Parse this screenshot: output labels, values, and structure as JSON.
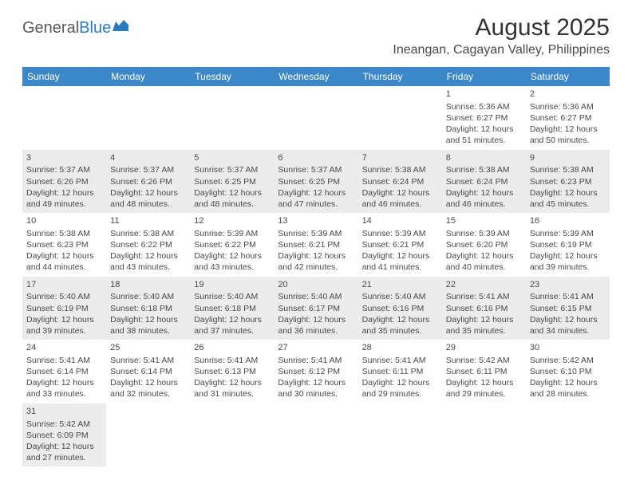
{
  "logo": {
    "text1": "General",
    "text2": "Blue",
    "icon_color": "#2d7bbf"
  },
  "title": "August 2025",
  "location": "Ineangan, Cagayan Valley, Philippines",
  "colors": {
    "header_bg": "#3b87c8",
    "header_text": "#ffffff",
    "shaded_bg": "#ececec",
    "border": "#3b87c8",
    "text": "#4a4a4a"
  },
  "weekdays": [
    "Sunday",
    "Monday",
    "Tuesday",
    "Wednesday",
    "Thursday",
    "Friday",
    "Saturday"
  ],
  "days": [
    {
      "n": 1,
      "sr": "5:36 AM",
      "ss": "6:27 PM",
      "dl": "12 hours and 51 minutes."
    },
    {
      "n": 2,
      "sr": "5:36 AM",
      "ss": "6:27 PM",
      "dl": "12 hours and 50 minutes."
    },
    {
      "n": 3,
      "sr": "5:37 AM",
      "ss": "6:26 PM",
      "dl": "12 hours and 49 minutes."
    },
    {
      "n": 4,
      "sr": "5:37 AM",
      "ss": "6:26 PM",
      "dl": "12 hours and 48 minutes."
    },
    {
      "n": 5,
      "sr": "5:37 AM",
      "ss": "6:25 PM",
      "dl": "12 hours and 48 minutes."
    },
    {
      "n": 6,
      "sr": "5:37 AM",
      "ss": "6:25 PM",
      "dl": "12 hours and 47 minutes."
    },
    {
      "n": 7,
      "sr": "5:38 AM",
      "ss": "6:24 PM",
      "dl": "12 hours and 46 minutes."
    },
    {
      "n": 8,
      "sr": "5:38 AM",
      "ss": "6:24 PM",
      "dl": "12 hours and 46 minutes."
    },
    {
      "n": 9,
      "sr": "5:38 AM",
      "ss": "6:23 PM",
      "dl": "12 hours and 45 minutes."
    },
    {
      "n": 10,
      "sr": "5:38 AM",
      "ss": "6:23 PM",
      "dl": "12 hours and 44 minutes."
    },
    {
      "n": 11,
      "sr": "5:38 AM",
      "ss": "6:22 PM",
      "dl": "12 hours and 43 minutes."
    },
    {
      "n": 12,
      "sr": "5:39 AM",
      "ss": "6:22 PM",
      "dl": "12 hours and 43 minutes."
    },
    {
      "n": 13,
      "sr": "5:39 AM",
      "ss": "6:21 PM",
      "dl": "12 hours and 42 minutes."
    },
    {
      "n": 14,
      "sr": "5:39 AM",
      "ss": "6:21 PM",
      "dl": "12 hours and 41 minutes."
    },
    {
      "n": 15,
      "sr": "5:39 AM",
      "ss": "6:20 PM",
      "dl": "12 hours and 40 minutes."
    },
    {
      "n": 16,
      "sr": "5:39 AM",
      "ss": "6:19 PM",
      "dl": "12 hours and 39 minutes."
    },
    {
      "n": 17,
      "sr": "5:40 AM",
      "ss": "6:19 PM",
      "dl": "12 hours and 39 minutes."
    },
    {
      "n": 18,
      "sr": "5:40 AM",
      "ss": "6:18 PM",
      "dl": "12 hours and 38 minutes."
    },
    {
      "n": 19,
      "sr": "5:40 AM",
      "ss": "6:18 PM",
      "dl": "12 hours and 37 minutes."
    },
    {
      "n": 20,
      "sr": "5:40 AM",
      "ss": "6:17 PM",
      "dl": "12 hours and 36 minutes."
    },
    {
      "n": 21,
      "sr": "5:40 AM",
      "ss": "6:16 PM",
      "dl": "12 hours and 35 minutes."
    },
    {
      "n": 22,
      "sr": "5:41 AM",
      "ss": "6:16 PM",
      "dl": "12 hours and 35 minutes."
    },
    {
      "n": 23,
      "sr": "5:41 AM",
      "ss": "6:15 PM",
      "dl": "12 hours and 34 minutes."
    },
    {
      "n": 24,
      "sr": "5:41 AM",
      "ss": "6:14 PM",
      "dl": "12 hours and 33 minutes."
    },
    {
      "n": 25,
      "sr": "5:41 AM",
      "ss": "6:14 PM",
      "dl": "12 hours and 32 minutes."
    },
    {
      "n": 26,
      "sr": "5:41 AM",
      "ss": "6:13 PM",
      "dl": "12 hours and 31 minutes."
    },
    {
      "n": 27,
      "sr": "5:41 AM",
      "ss": "6:12 PM",
      "dl": "12 hours and 30 minutes."
    },
    {
      "n": 28,
      "sr": "5:41 AM",
      "ss": "6:11 PM",
      "dl": "12 hours and 29 minutes."
    },
    {
      "n": 29,
      "sr": "5:42 AM",
      "ss": "6:11 PM",
      "dl": "12 hours and 29 minutes."
    },
    {
      "n": 30,
      "sr": "5:42 AM",
      "ss": "6:10 PM",
      "dl": "12 hours and 28 minutes."
    },
    {
      "n": 31,
      "sr": "5:42 AM",
      "ss": "6:09 PM",
      "dl": "12 hours and 27 minutes."
    }
  ],
  "labels": {
    "sunrise": "Sunrise:",
    "sunset": "Sunset:",
    "daylight": "Daylight:"
  },
  "layout": {
    "first_day_column": 5,
    "rows": 6,
    "cols": 7
  }
}
